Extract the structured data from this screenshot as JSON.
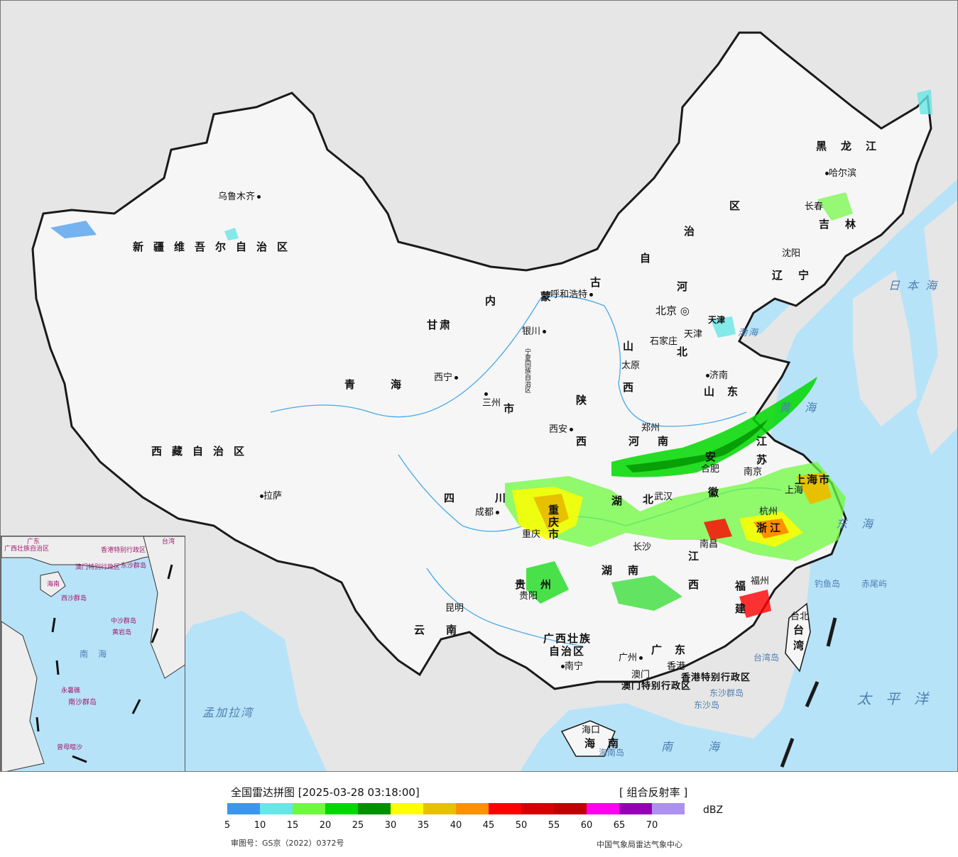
{
  "legend": {
    "title": "全国雷达拼图 [2025-03-28 03:18:00]",
    "product": "[ 组合反射率 ]",
    "unit": "dBZ",
    "colors": [
      "#3d96ee",
      "#66e6e6",
      "#6dfa3d",
      "#00d800",
      "#009100",
      "#ffff00",
      "#e7c000",
      "#ff9000",
      "#ff0000",
      "#d60000",
      "#c00000",
      "#ff00f0",
      "#9600b4",
      "#ad90f0"
    ],
    "ticks": [
      "5",
      "10",
      "15",
      "20",
      "25",
      "30",
      "35",
      "40",
      "45",
      "50",
      "55",
      "60",
      "65",
      "70"
    ],
    "approval": "审图号：GS京（2022）0372号",
    "source": "中国气象局雷达气象中心"
  },
  "provinces": [
    {
      "id": "xinjiang",
      "text": "新疆维吾尔自治区"
    },
    {
      "id": "xizang",
      "text": "西藏自治区"
    },
    {
      "id": "qinghai",
      "text": "青海"
    },
    {
      "id": "gansu",
      "text": "甘肃"
    },
    {
      "id": "neimenggu-nei",
      "text": "内"
    },
    {
      "id": "neimenggu-meng",
      "text": "蒙"
    },
    {
      "id": "neimenggu-gu",
      "text": "古"
    },
    {
      "id": "neimenggu-zi",
      "text": "自"
    },
    {
      "id": "neimenggu-zhi",
      "text": "治"
    },
    {
      "id": "neimenggu-qu",
      "text": "区"
    },
    {
      "id": "heilongjiang",
      "text": "黑龙江"
    },
    {
      "id": "jilin",
      "text": "吉林"
    },
    {
      "id": "liaoning",
      "text": "辽宁"
    },
    {
      "id": "hebei-he",
      "text": "河"
    },
    {
      "id": "hebei-bei",
      "text": "北"
    },
    {
      "id": "shanxi-shan",
      "text": "山"
    },
    {
      "id": "shanxi-xi",
      "text": "西"
    },
    {
      "id": "shaanxi-shan",
      "text": "陕"
    },
    {
      "id": "shaanxi-xi",
      "text": "西"
    },
    {
      "id": "shandong",
      "text": "山东"
    },
    {
      "id": "henan",
      "text": "河南"
    },
    {
      "id": "jiangsu-jiang",
      "text": "江"
    },
    {
      "id": "jiangsu-su",
      "text": "苏"
    },
    {
      "id": "anhui-an",
      "text": "安"
    },
    {
      "id": "anhui-hui",
      "text": "徽"
    },
    {
      "id": "hubei-hu",
      "text": "湖"
    },
    {
      "id": "hubei-bei",
      "text": "北"
    },
    {
      "id": "hunan",
      "text": "湖南"
    },
    {
      "id": "jiangxi-jiang",
      "text": "江"
    },
    {
      "id": "jiangxi-xi",
      "text": "西"
    },
    {
      "id": "zhejiang",
      "text": "浙江"
    },
    {
      "id": "fujian-fu",
      "text": "福"
    },
    {
      "id": "fujian-jian",
      "text": "建"
    },
    {
      "id": "sichuan-si",
      "text": "四"
    },
    {
      "id": "sichuan-chuan",
      "text": "川"
    },
    {
      "id": "chongqing",
      "text": "重庆市"
    },
    {
      "id": "guizhou-gui",
      "text": "贵"
    },
    {
      "id": "guizhou-zhou",
      "text": "州"
    },
    {
      "id": "yunnan",
      "text": "云南"
    },
    {
      "id": "guangxi-1",
      "text": "广西壮族"
    },
    {
      "id": "guangxi-2",
      "text": "自治区"
    },
    {
      "id": "guangdong",
      "text": "广东"
    },
    {
      "id": "hainan",
      "text": "海南"
    },
    {
      "id": "taiwan-tai",
      "text": "台"
    },
    {
      "id": "taiwan-wan",
      "text": "湾"
    },
    {
      "id": "ningxia",
      "text": "宁夏回族自治区"
    },
    {
      "id": "shanghai",
      "text": "上海市"
    },
    {
      "id": "tianjin",
      "text": "天津"
    },
    {
      "id": "gansu-sheng",
      "text": "市"
    },
    {
      "id": "hk",
      "text": "香港特别行政区"
    },
    {
      "id": "macau",
      "text": "澳门特别行政区"
    }
  ],
  "cities": [
    {
      "id": "urumqi",
      "text": "乌鲁木齐"
    },
    {
      "id": "lhasa",
      "text": "拉萨"
    },
    {
      "id": "xining",
      "text": "西宁"
    },
    {
      "id": "lanzhou",
      "text": "三州"
    },
    {
      "id": "yinchuan",
      "text": "银川"
    },
    {
      "id": "hohhot",
      "text": "呼和浩特"
    },
    {
      "id": "beijing",
      "text": "北京"
    },
    {
      "id": "shijiazhuang",
      "text": "石家庄"
    },
    {
      "id": "taiyuan",
      "text": "太原"
    },
    {
      "id": "jinan",
      "text": "济南"
    },
    {
      "id": "zhengzhou",
      "text": "郑州"
    },
    {
      "id": "xian",
      "text": "西安"
    },
    {
      "id": "chengdu",
      "text": "成都"
    },
    {
      "id": "chongqing-city",
      "text": "重庆"
    },
    {
      "id": "guiyang",
      "text": "贵阳"
    },
    {
      "id": "kunming",
      "text": "昆明"
    },
    {
      "id": "nanning",
      "text": "南宁"
    },
    {
      "id": "guangzhou",
      "text": "广州"
    },
    {
      "id": "macau-city",
      "text": "澳门"
    },
    {
      "id": "hongkong",
      "text": "香港"
    },
    {
      "id": "haikou",
      "text": "海口"
    },
    {
      "id": "wuhan",
      "text": "武汉"
    },
    {
      "id": "changsha",
      "text": "长沙"
    },
    {
      "id": "nanchang",
      "text": "南昌"
    },
    {
      "id": "hefei",
      "text": "合肥"
    },
    {
      "id": "nanjing",
      "text": "南京"
    },
    {
      "id": "hangzhou",
      "text": "杭州"
    },
    {
      "id": "fuzhou",
      "text": "福州"
    },
    {
      "id": "taibei",
      "text": "台北"
    },
    {
      "id": "shenyang",
      "text": "沈阳"
    },
    {
      "id": "changchun",
      "text": "长春"
    },
    {
      "id": "harbin",
      "text": "哈尔滨"
    },
    {
      "id": "shanghai-city",
      "text": "上海"
    },
    {
      "id": "tianjin-city",
      "text": "天津"
    }
  ],
  "seas": [
    {
      "id": "riben-hai",
      "text": "日本海"
    },
    {
      "id": "huang-hai",
      "text": "黄海"
    },
    {
      "id": "dong-hai",
      "text": "东海"
    },
    {
      "id": "bo-hai",
      "text": "渤海"
    },
    {
      "id": "taiping-yang",
      "text": "太平洋"
    },
    {
      "id": "nan-hai",
      "text": "南海"
    },
    {
      "id": "mengjiala-wan",
      "text": "孟加拉湾"
    }
  ],
  "islands": [
    {
      "id": "diaoyu",
      "text": "钓鱼岛"
    },
    {
      "id": "chiwei",
      "text": "赤尾屿"
    },
    {
      "id": "taiwan-dao",
      "text": "台湾岛"
    },
    {
      "id": "hainan-dao",
      "text": "海南岛"
    },
    {
      "id": "dongsha-qundao",
      "text": "东沙群岛"
    },
    {
      "id": "dongsha-dao",
      "text": "东沙岛"
    }
  ],
  "inset": {
    "labels": [
      "广东",
      "广西壮族自治区",
      "台湾",
      "海南",
      "香港特别行政区",
      "澳门特别行政区",
      "东沙群岛",
      "西沙群岛",
      "中沙群岛",
      "黄岩岛",
      "南海",
      "永暑礁",
      "南沙群岛",
      "曾母暗沙"
    ]
  }
}
